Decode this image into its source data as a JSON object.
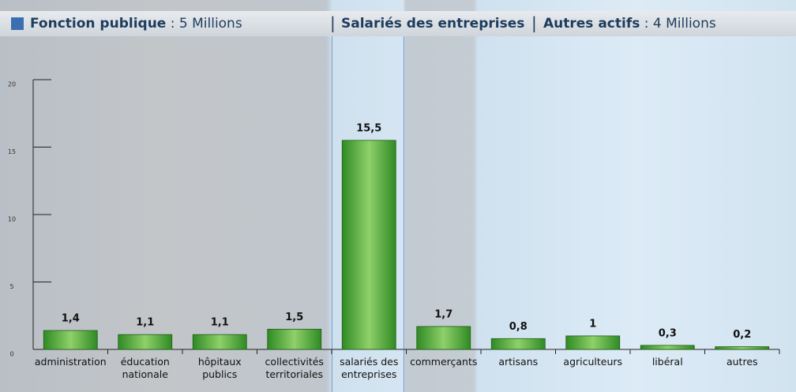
{
  "chart_data": {
    "type": "bar",
    "header": [
      {
        "name": "Fonction publique",
        "note": ": 5 Millions"
      },
      {
        "name": "Salariés des entreprises"
      },
      {
        "name": "Autres actifs",
        "note": ": 4 Millions"
      }
    ],
    "categories": [
      "administration",
      "éducation\nnationale",
      "hôpitaux\npublics",
      "collectivités\nterritoriales",
      "salariés des\nentreprises",
      "commerçants",
      "artisans",
      "agriculteurs",
      "libéral",
      "autres"
    ],
    "values": [
      1.4,
      1.1,
      1.1,
      1.5,
      15.5,
      1.7,
      0.8,
      1,
      0.3,
      0.2
    ],
    "value_labels": [
      "1,4",
      "1,1",
      "1,1",
      "1,5",
      "15,5",
      "1,7",
      "0,8",
      "1",
      "0,3",
      "0,2"
    ],
    "color": "#3f9b2c",
    "ylim": [
      0,
      20
    ],
    "yticks": [
      0,
      5,
      10,
      15,
      20
    ]
  }
}
